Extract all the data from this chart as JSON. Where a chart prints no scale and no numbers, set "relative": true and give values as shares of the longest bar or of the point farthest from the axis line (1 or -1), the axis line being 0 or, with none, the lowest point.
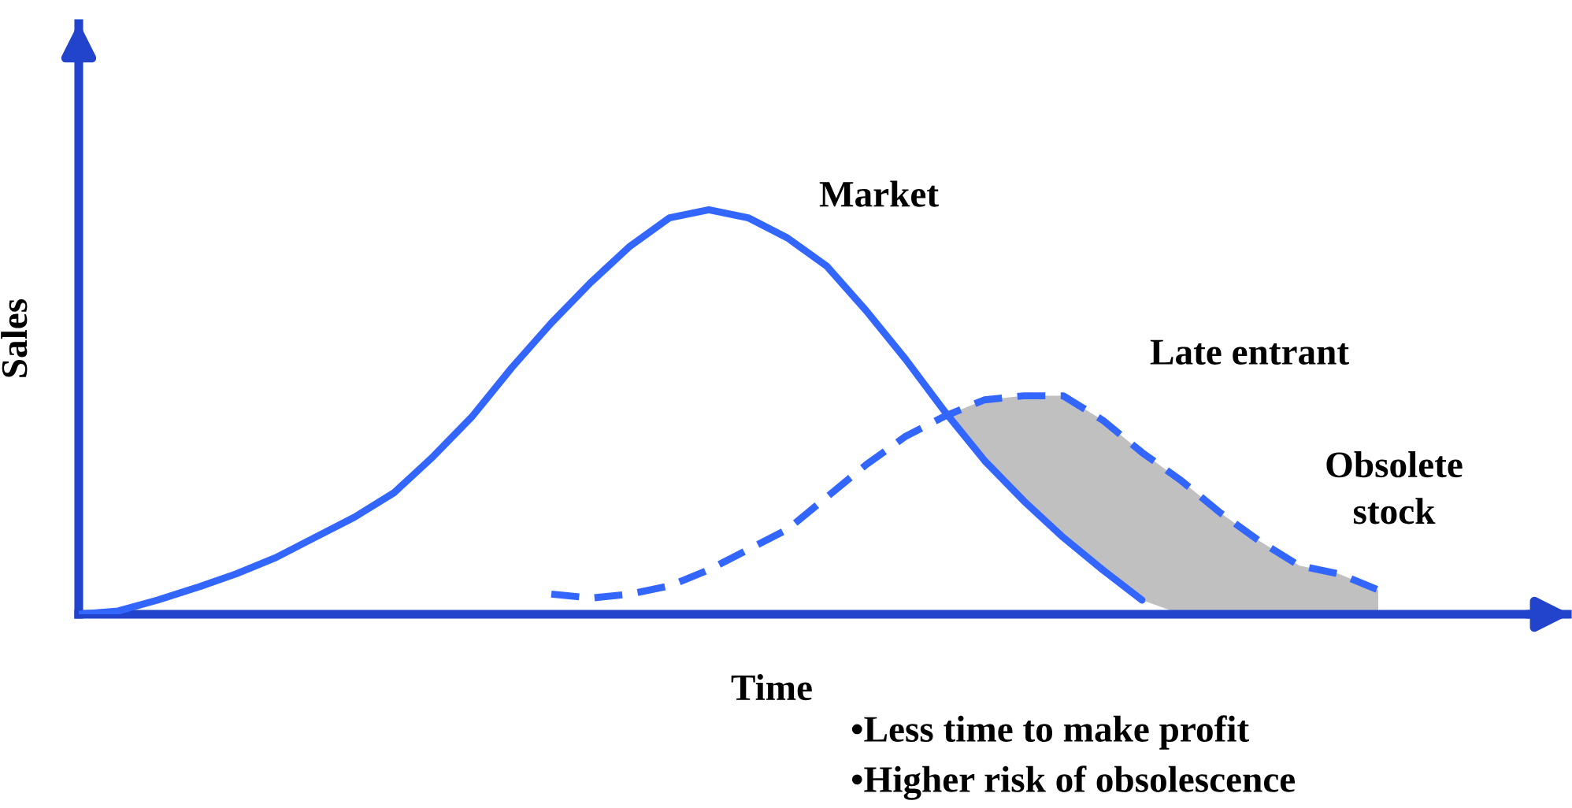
{
  "chart_data": {
    "type": "line",
    "relative": true,
    "xlabel": "Time",
    "ylabel": "Sales",
    "categories": [
      null,
      null,
      null,
      null,
      null,
      null,
      null,
      null,
      null,
      null,
      null,
      null,
      null,
      null,
      null,
      null,
      null,
      null,
      null,
      null,
      null,
      null,
      null,
      null,
      null,
      null,
      null,
      null,
      null,
      null,
      null,
      null,
      null,
      null,
      null,
      null,
      null,
      null,
      null
    ],
    "series": [
      {
        "name": "Market",
        "color": "#3366ff",
        "line_style": "solid",
        "values": [
          0,
          0.008,
          0.035,
          0.066,
          0.1,
          0.14,
          0.19,
          0.24,
          0.3,
          0.39,
          0.49,
          0.61,
          0.72,
          0.82,
          0.91,
          0.98,
          1,
          0.98,
          0.93,
          0.86,
          0.75,
          0.63,
          0.5,
          0.38,
          0.28,
          0.19,
          0.11,
          0.035,
          null,
          null,
          null,
          null,
          null,
          null,
          null,
          null,
          null,
          null,
          null
        ]
      },
      {
        "name": "Late entrant",
        "color": "#3366ff",
        "line_style": "dashed",
        "values": [
          null,
          null,
          null,
          null,
          null,
          null,
          null,
          null,
          null,
          null,
          null,
          null,
          0.05,
          0.04,
          0.05,
          0.07,
          0.11,
          0.16,
          0.21,
          0.29,
          0.37,
          0.44,
          0.49,
          0.53,
          0.54,
          0.54,
          0.48,
          0.4,
          0.33,
          0.25,
          0.18,
          0.12,
          0.1,
          0.06,
          null,
          null,
          null,
          null,
          null
        ],
        "lower": [
          null,
          null,
          null,
          null,
          null,
          null,
          null,
          null,
          null,
          null,
          null,
          null,
          null,
          null,
          null,
          null,
          null,
          null,
          null,
          null,
          null,
          null,
          0.49,
          0.38,
          0.28,
          0.19,
          0.11,
          0.035,
          0,
          0,
          0,
          0,
          0,
          0,
          null,
          null,
          null,
          null,
          null
        ],
        "upper": [
          null,
          null,
          null,
          null,
          null,
          null,
          null,
          null,
          null,
          null,
          null,
          null,
          null,
          null,
          null,
          null,
          null,
          null,
          null,
          null,
          null,
          null,
          0.49,
          0.53,
          0.54,
          0.54,
          0.48,
          0.4,
          0.33,
          0.25,
          0.18,
          0.12,
          0.1,
          0.06,
          null,
          null,
          null,
          null,
          null
        ]
      }
    ],
    "annotations": [
      "Obsolete\nstock",
      "•Less time to make profit",
      "•Higher risk of obsolescence"
    ]
  }
}
